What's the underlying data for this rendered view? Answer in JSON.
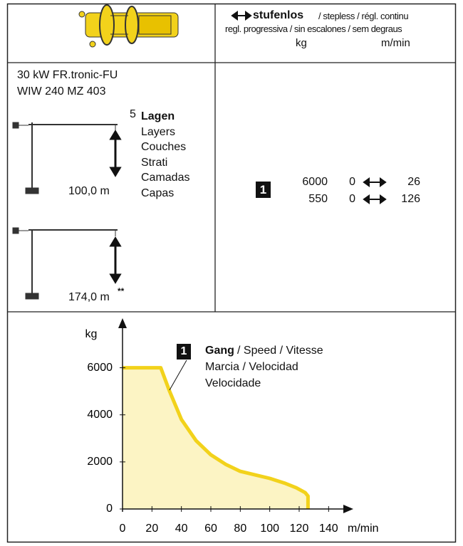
{
  "header": {
    "mode": "stufenlos",
    "mode_translations": "/ stepless / régl. continu",
    "mode_translations_2": "regl. progressiva / sin escalones / sem degraus",
    "unit_load": "kg",
    "unit_speed": "m/min"
  },
  "motor": {
    "power": "30 kW FR.tronic-FU",
    "model": "WIW 240 MZ 403"
  },
  "layers": {
    "count": "5",
    "labels": [
      "Lagen",
      "Layers",
      "Couches",
      "Strati",
      "Camadas",
      "Capas"
    ]
  },
  "heights": {
    "first": "100,0 m",
    "second": "174,0 m",
    "second_note": "**"
  },
  "speeds": {
    "gear": "1",
    "rows": [
      [
        "6000",
        "0",
        "26"
      ],
      [
        "550",
        "0",
        "126"
      ]
    ]
  },
  "chart_data": {
    "type": "line",
    "y_label": "kg",
    "x_label": "m/min",
    "annotation": {
      "badge": "1",
      "gang": "Gang",
      "gang_rest": "/ Speed / Vitesse",
      "line2": "Marcia / Velocidad",
      "line3": "Velocidade"
    },
    "x": [
      0,
      26,
      32,
      40,
      50,
      60,
      70,
      80,
      90,
      100,
      110,
      118,
      124,
      126,
      126
    ],
    "series": [
      {
        "color": "#f2d21b",
        "fill": "#fcf4c4",
        "values": [
          6000,
          6000,
          5000,
          3800,
          2900,
          2300,
          1900,
          1600,
          1450,
          1300,
          1100,
          900,
          700,
          550,
          0
        ]
      }
    ],
    "xlim": [
      0,
      150
    ],
    "ylim": [
      0,
      7500
    ],
    "xticks": [
      0,
      20,
      40,
      60,
      80,
      100,
      120,
      140
    ],
    "yticks": [
      0,
      2000,
      4000,
      6000
    ]
  }
}
